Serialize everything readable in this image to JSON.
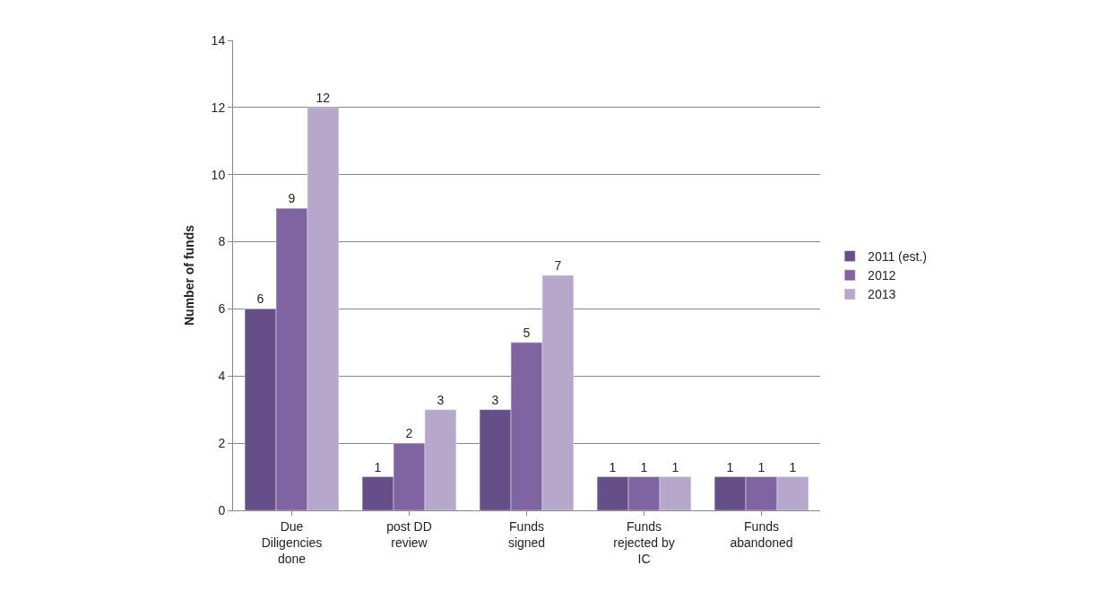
{
  "chart_data": {
    "type": "bar",
    "ylabel": "Number of funds",
    "categories": [
      "Due\nDiligencies\ndone",
      "post DD\nreview",
      "Funds\nsigned",
      "Funds\nrejected by\nIC",
      "Funds\nabandoned"
    ],
    "series": [
      {
        "name": "2011 (est.)",
        "color": "#664e88",
        "values": [
          6,
          1,
          3,
          1,
          1
        ]
      },
      {
        "name": "2012",
        "color": "#8064a2",
        "values": [
          9,
          2,
          5,
          1,
          1
        ]
      },
      {
        "name": "2013",
        "color": "#b7a8cb",
        "values": [
          12,
          3,
          7,
          1,
          1
        ]
      }
    ],
    "ylim": [
      0,
      14
    ],
    "yticks": [
      0,
      2,
      4,
      6,
      8,
      10,
      12,
      14
    ],
    "grid": "y",
    "legend": "right",
    "data_labels": true
  }
}
